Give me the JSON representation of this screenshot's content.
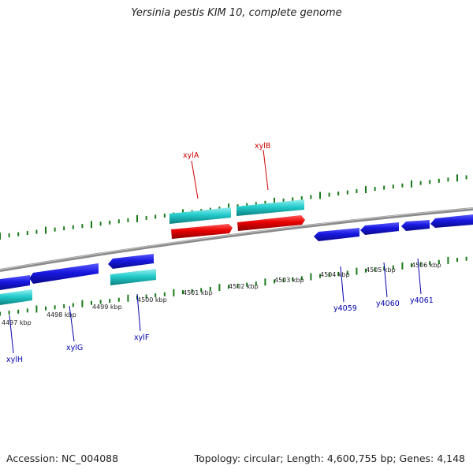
{
  "header": {
    "title": "Yersinia pestis KIM 10, complete genome"
  },
  "footer": {
    "accession": "Accession: NC_004088",
    "topology": "Topology: circular; Length: 4,600,755 bp; Genes: 4,148"
  },
  "scale_labels": [
    "4497 kbp",
    "4498 kbp",
    "4499 kbp",
    "4500 kbp",
    "4501 kbp",
    "4502 kbp",
    "4503 kbp",
    "4504 kbp",
    "4505 kbp",
    "4506 kbp"
  ],
  "gene_labels": {
    "top": [
      "xylA",
      "xylB"
    ],
    "bottom": [
      "xylH",
      "xylG",
      "xylF",
      "y4059",
      "y4060",
      "y4061"
    ]
  },
  "colors": {
    "forward_cds": "#e00000",
    "reverse_cds": "#1414d6",
    "rna_like": "#22cccc",
    "ticks": "#1a7a1a",
    "backbone": "#808080",
    "label_top": "#cc0000",
    "label_bottom": "#0000aa"
  }
}
